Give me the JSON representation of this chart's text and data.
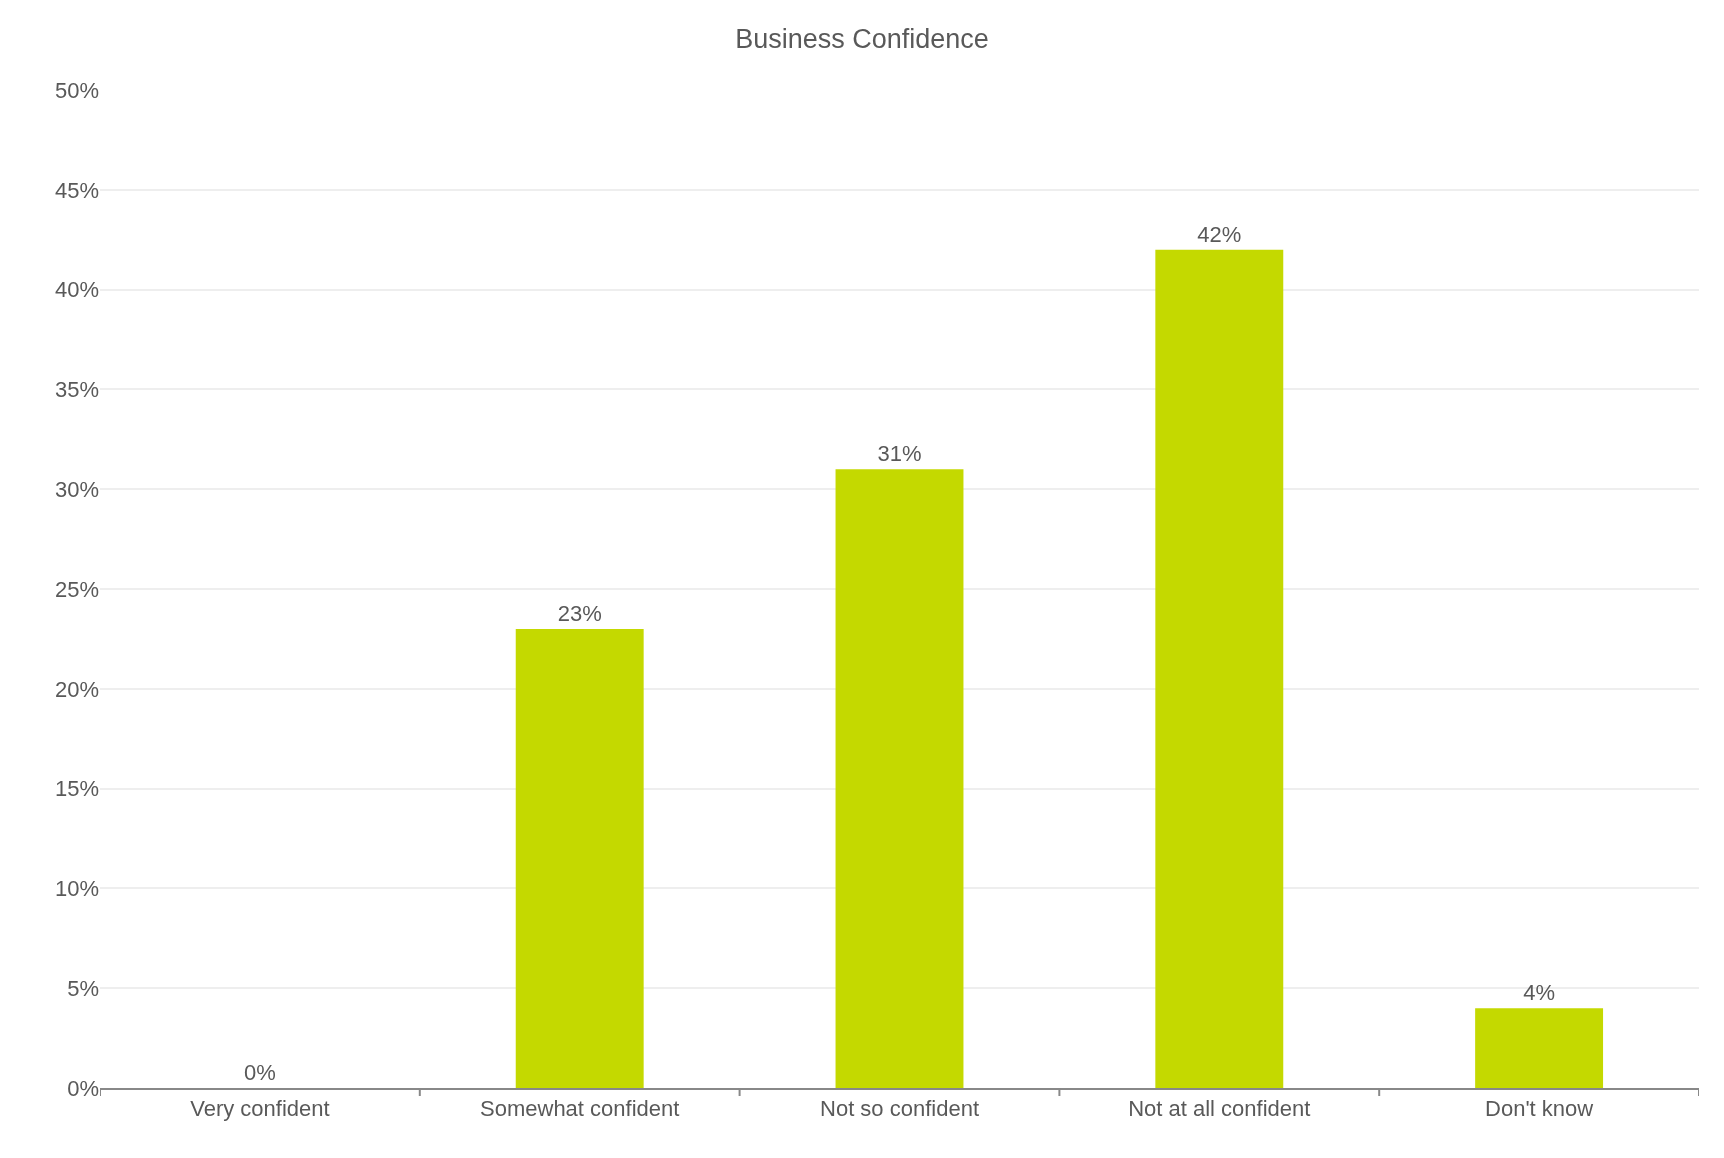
{
  "chart_data": {
    "type": "bar",
    "title": "Business Confidence",
    "categories": [
      "Very confident",
      "Somewhat confident",
      "Not so confident",
      "Not at all confident",
      "Don't know"
    ],
    "values": [
      0,
      23,
      31,
      42,
      4
    ],
    "value_labels": [
      "0%",
      "23%",
      "31%",
      "42%",
      "4%"
    ],
    "color": "#c4d900",
    "ylim": [
      0,
      50
    ],
    "yticks": [
      {
        "value": 0,
        "label": "0%"
      },
      {
        "value": 5,
        "label": "5%"
      },
      {
        "value": 10,
        "label": "10%"
      },
      {
        "value": 15,
        "label": "15%"
      },
      {
        "value": 20,
        "label": "20%"
      },
      {
        "value": 25,
        "label": "25%"
      },
      {
        "value": 30,
        "label": "30%"
      },
      {
        "value": 35,
        "label": "35%"
      },
      {
        "value": 40,
        "label": "40%"
      },
      {
        "value": 45,
        "label": "45%"
      },
      {
        "value": 50,
        "label": "50%"
      }
    ],
    "grid": "y",
    "legend": false
  }
}
